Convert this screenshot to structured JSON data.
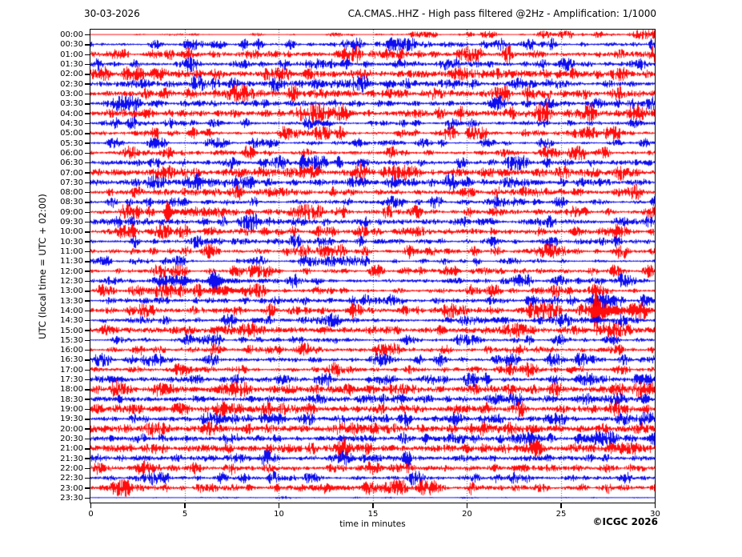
{
  "header": {
    "date": "30-03-2026",
    "title": "CA.CMAS..HHZ - High pass filtered @2Hz - Amplification: 1/1000"
  },
  "footer": {
    "copyright": "©ICGC 2026"
  },
  "chart_data": {
    "type": "line",
    "subtype": "helicorder-daily-seismogram",
    "station": "CA.CMAS..HHZ",
    "filter": "High pass filtered @2Hz",
    "amplification": "1/1000",
    "date": "30-03-2026",
    "xlabel": "time in minutes",
    "ylabel": "UTC (local time = UTC + 02:00)",
    "xlim": [
      0,
      30
    ],
    "x_ticks": [
      0,
      5,
      10,
      15,
      20,
      25,
      30
    ],
    "grid": "vertical dotted lines every 5 minutes",
    "minutes_per_trace": 30,
    "num_traces": 48,
    "trace_colors": {
      "red": "#ff0000",
      "blue": "#0000ee"
    },
    "notable_events": [
      {
        "trace": "09:00",
        "minute": 4.05,
        "color": "red",
        "relative_amplitude": "large"
      },
      {
        "trace": "12:30",
        "minute": 6.55,
        "color": "blue",
        "relative_amplitude": "large"
      },
      {
        "trace": "14:00",
        "minute": 26.85,
        "color": "red",
        "relative_amplitude": "largest, overlaps neighbour traces"
      }
    ],
    "rows": [
      {
        "t": "00:00",
        "c": "red",
        "a": 1.0,
        "p": 2.0,
        "g": [
          0.1,
          1.0
        ],
        "e": [
          [
            19.6,
            1.4,
            0.05,
            0
          ]
        ]
      },
      {
        "t": "00:30",
        "c": "blue",
        "a": 1.4,
        "p": 1.6
      },
      {
        "t": "01:00",
        "c": "red",
        "a": 2.0,
        "p": 1.3
      },
      {
        "t": "01:30",
        "c": "blue",
        "a": 1.7,
        "p": 1.4
      },
      {
        "t": "02:00",
        "c": "red",
        "a": 2.3,
        "p": 0.9
      },
      {
        "t": "02:30",
        "c": "blue",
        "a": 1.9,
        "p": 1.0
      },
      {
        "t": "03:00",
        "c": "red",
        "a": 2.0,
        "p": 1.2
      },
      {
        "t": "03:30",
        "c": "blue",
        "a": 1.8,
        "p": 1.1,
        "e": [
          [
            15.3,
            2.5,
            0.06,
            0
          ]
        ]
      },
      {
        "t": "04:00",
        "c": "red",
        "a": 2.2,
        "p": 1.1
      },
      {
        "t": "04:30",
        "c": "blue",
        "a": 1.4,
        "p": 1.5,
        "e": [
          [
            4.3,
            2.0,
            0.06,
            0
          ]
        ]
      },
      {
        "t": "05:00",
        "c": "red",
        "a": 1.4,
        "p": 1.5
      },
      {
        "t": "05:30",
        "c": "blue",
        "a": 1.1,
        "p": 1.7
      },
      {
        "t": "06:00",
        "c": "red",
        "a": 1.5,
        "p": 1.5
      },
      {
        "t": "06:30",
        "c": "blue",
        "a": 1.6,
        "p": 1.3
      },
      {
        "t": "07:00",
        "c": "red",
        "a": 2.4,
        "p": 0.9
      },
      {
        "t": "07:30",
        "c": "blue",
        "a": 2.0,
        "p": 1.0,
        "g": [
          1.2,
          0.8
        ]
      },
      {
        "t": "08:00",
        "c": "red",
        "a": 1.8,
        "p": 1.2
      },
      {
        "t": "08:30",
        "c": "blue",
        "a": 1.3,
        "p": 1.6
      },
      {
        "t": "09:00",
        "c": "red",
        "a": 1.6,
        "p": 1.3,
        "e": [
          [
            4.05,
            13,
            0.1,
            1.3
          ]
        ]
      },
      {
        "t": "09:30",
        "c": "blue",
        "a": 1.7,
        "p": 1.1,
        "g": [
          1.2,
          0.8
        ]
      },
      {
        "t": "10:00",
        "c": "red",
        "a": 1.8,
        "p": 1.2
      },
      {
        "t": "10:30",
        "c": "blue",
        "a": 1.4,
        "p": 1.4
      },
      {
        "t": "11:00",
        "c": "red",
        "a": 1.6,
        "p": 1.4
      },
      {
        "t": "11:30",
        "c": "blue",
        "a": 1.1,
        "p": 1.7
      },
      {
        "t": "12:00",
        "c": "red",
        "a": 1.3,
        "p": 1.6
      },
      {
        "t": "12:30",
        "c": "blue",
        "a": 1.5,
        "p": 1.3,
        "e": [
          [
            6.55,
            11,
            0.22,
            1.6
          ],
          [
            4.9,
            2.2,
            0.5,
            0
          ]
        ]
      },
      {
        "t": "13:00",
        "c": "red",
        "a": 1.4,
        "p": 1.4,
        "e": [
          [
            7.5,
            1.8,
            1.2,
            0
          ]
        ]
      },
      {
        "t": "13:30",
        "c": "blue",
        "a": 1.6,
        "p": 1.3
      },
      {
        "t": "14:00",
        "c": "red",
        "a": 1.7,
        "p": 1.2,
        "e": [
          [
            26.85,
            22,
            0.12,
            1.0
          ],
          [
            27.8,
            3.5,
            0.3,
            0
          ],
          [
            29.0,
            3.0,
            0.5,
            0
          ]
        ]
      },
      {
        "t": "14:30",
        "c": "blue",
        "a": 1.6,
        "p": 1.2,
        "e": [
          [
            21.6,
            2.2,
            0.4,
            0
          ],
          [
            26.9,
            2.2,
            0.4,
            0
          ]
        ]
      },
      {
        "t": "15:00",
        "c": "red",
        "a": 2.3,
        "p": 0.9
      },
      {
        "t": "15:30",
        "c": "blue",
        "a": 1.2,
        "p": 1.5
      },
      {
        "t": "16:00",
        "c": "red",
        "a": 1.5,
        "p": 1.4
      },
      {
        "t": "16:30",
        "c": "blue",
        "a": 1.4,
        "p": 1.4
      },
      {
        "t": "17:00",
        "c": "red",
        "a": 1.5,
        "p": 1.3,
        "e": [
          [
            16.2,
            2.2,
            0.06,
            0
          ]
        ]
      },
      {
        "t": "17:30",
        "c": "blue",
        "a": 1.7,
        "p": 1.2,
        "e": [
          [
            1.3,
            2.5,
            0.3,
            0
          ],
          [
            14.8,
            3.0,
            0.08,
            0
          ],
          [
            21.0,
            2.2,
            0.08,
            0
          ],
          [
            25.8,
            2.5,
            0.08,
            0
          ],
          [
            29.2,
            3.0,
            0.15,
            0
          ]
        ]
      },
      {
        "t": "18:00",
        "c": "red",
        "a": 2.4,
        "p": 0.85,
        "e": [
          [
            29.9,
            3.0,
            0.1,
            0
          ]
        ]
      },
      {
        "t": "18:30",
        "c": "blue",
        "a": 1.9,
        "p": 1.0,
        "e": [
          [
            1.5,
            4.5,
            0.08,
            0
          ],
          [
            8.5,
            3.5,
            0.08,
            0
          ],
          [
            29.5,
            4.0,
            0.15,
            0
          ]
        ]
      },
      {
        "t": "19:00",
        "c": "red",
        "a": 2.3,
        "p": 0.9,
        "e": [
          [
            14.2,
            3.0,
            0.07,
            0
          ],
          [
            16.6,
            2.5,
            0.07,
            0
          ]
        ]
      },
      {
        "t": "19:30",
        "c": "blue",
        "a": 1.6,
        "p": 1.2,
        "e": [
          [
            9.6,
            2.5,
            0.3,
            0
          ],
          [
            19.3,
            2.2,
            0.2,
            0
          ]
        ]
      },
      {
        "t": "20:00",
        "c": "red",
        "a": 2.4,
        "p": 0.85
      },
      {
        "t": "20:30",
        "c": "blue",
        "a": 1.8,
        "p": 1.1,
        "e": [
          [
            1.1,
            4.5,
            0.08,
            0
          ],
          [
            5.1,
            3.0,
            0.07,
            0
          ],
          [
            17.8,
            4.5,
            0.09,
            0
          ],
          [
            26.8,
            2.5,
            0.3,
            0
          ]
        ]
      },
      {
        "t": "21:00",
        "c": "red",
        "a": 2.4,
        "p": 0.85,
        "e": [
          [
            16.0,
            3.0,
            0.07,
            0
          ],
          [
            23.6,
            3.0,
            0.2,
            0
          ]
        ]
      },
      {
        "t": "21:30",
        "c": "blue",
        "a": 1.7,
        "p": 1.2
      },
      {
        "t": "22:00",
        "c": "red",
        "a": 1.8,
        "p": 1.1
      },
      {
        "t": "22:30",
        "c": "blue",
        "a": 1.5,
        "p": 1.3
      },
      {
        "t": "23:00",
        "c": "red",
        "a": 1.7,
        "p": 1.3,
        "e": [
          [
            2.0,
            5.5,
            0.08,
            0
          ],
          [
            8.4,
            3.5,
            0.08,
            0
          ],
          [
            9.9,
            3.5,
            0.08,
            0
          ],
          [
            13.0,
            2.0,
            0.6,
            0
          ],
          [
            17.5,
            2.5,
            0.12,
            0
          ]
        ]
      },
      {
        "t": "23:30",
        "c": "blue",
        "a": 0.35,
        "p": 1.0
      }
    ]
  }
}
